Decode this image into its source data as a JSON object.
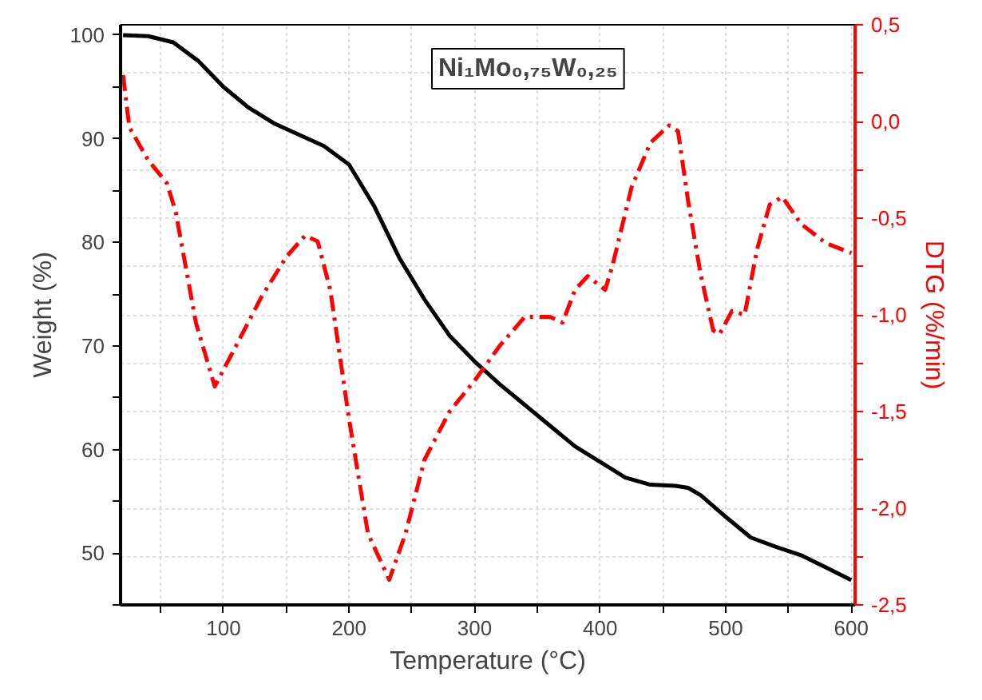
{
  "chart_data": {
    "type": "line",
    "xlabel": "Temperature (°C)",
    "ylabel": "Weight (%)",
    "y2label": "DTG (%/min)",
    "annotations": [
      "Ni₁Mo₀,₇₅W₀,₂₅"
    ],
    "xlim": [
      18,
      603
    ],
    "ylim": [
      45,
      101
    ],
    "y2lim": [
      -2.5,
      0.5
    ],
    "xticks": [
      {
        "value": 50,
        "label": null
      },
      100,
      {
        "value": 150,
        "label": null
      },
      200,
      {
        "value": 250,
        "label": null
      },
      300,
      {
        "value": 350,
        "label": null
      },
      400,
      {
        "value": 450,
        "label": null
      },
      500,
      {
        "value": 550,
        "label": null
      },
      600
    ],
    "yticks": [
      {
        "value": 45,
        "label": null
      },
      50,
      {
        "value": 55,
        "label": null
      },
      60,
      {
        "value": 65,
        "label": null
      },
      70,
      {
        "value": 75,
        "label": null
      },
      80,
      {
        "value": 85,
        "label": null
      },
      90,
      {
        "value": 95,
        "label": null
      },
      100
    ],
    "y2ticks": [
      {
        "value": -2.5,
        "label": "-2,5"
      },
      {
        "value": -2.25,
        "label": null
      },
      {
        "value": -2.0,
        "label": "-2,0"
      },
      {
        "value": -1.75,
        "label": null
      },
      {
        "value": -1.5,
        "label": "-1,5"
      },
      {
        "value": -1.25,
        "label": null
      },
      {
        "value": -1.0,
        "label": "-1,0"
      },
      {
        "value": -0.75,
        "label": null
      },
      {
        "value": -0.5,
        "label": "-0,5"
      },
      {
        "value": -0.25,
        "label": null
      },
      {
        "value": 0.0,
        "label": "0,0"
      },
      {
        "value": 0.25,
        "label": null
      },
      {
        "value": 0.5,
        "label": "0,5"
      }
    ],
    "grid": true,
    "series": [
      {
        "color": "#000000",
        "line_style": "solid",
        "x": [
          20,
          40,
          60,
          80,
          100,
          120,
          140,
          160,
          180,
          200,
          220,
          240,
          260,
          280,
          300,
          320,
          340,
          360,
          380,
          400,
          420,
          440,
          460,
          470,
          480,
          500,
          520,
          540,
          560,
          580,
          600
        ],
        "values": [
          100,
          99.9,
          99.3,
          97.5,
          95,
          93,
          91.5,
          90.4,
          89.3,
          87.5,
          83.5,
          78.5,
          74.5,
          71,
          68.5,
          66.3,
          64.3,
          62.3,
          60.3,
          58.8,
          57.3,
          56.6,
          56.5,
          56.3,
          55.6,
          53.5,
          51.5,
          50.6,
          49.8,
          48.6,
          47.4
        ]
      },
      {
        "color": "#ff0000",
        "line_style": "dashdot",
        "axis": "y2",
        "x": [
          20,
          25,
          40,
          55,
          62,
          78,
          93,
          110,
          130,
          150,
          165,
          175,
          185,
          200,
          215,
          232,
          245,
          260,
          280,
          300,
          320,
          340,
          360,
          370,
          380,
          390,
          404,
          410,
          425,
          440,
          455,
          462,
          470,
          480,
          490,
          495,
          505,
          515,
          525,
          535,
          545,
          560,
          580,
          600
        ],
        "values": [
          0.24,
          -0.03,
          -0.2,
          -0.32,
          -0.47,
          -1.04,
          -1.37,
          -1.16,
          -0.91,
          -0.7,
          -0.59,
          -0.62,
          -0.87,
          -1.54,
          -2.13,
          -2.37,
          -2.13,
          -1.75,
          -1.5,
          -1.34,
          -1.16,
          -1.01,
          -1.01,
          -1.04,
          -0.87,
          -0.8,
          -0.87,
          -0.74,
          -0.34,
          -0.11,
          -0.02,
          -0.05,
          -0.41,
          -0.79,
          -1.08,
          -1.1,
          -0.98,
          -1.0,
          -0.66,
          -0.43,
          -0.39,
          -0.53,
          -0.63,
          -0.68
        ]
      }
    ]
  }
}
